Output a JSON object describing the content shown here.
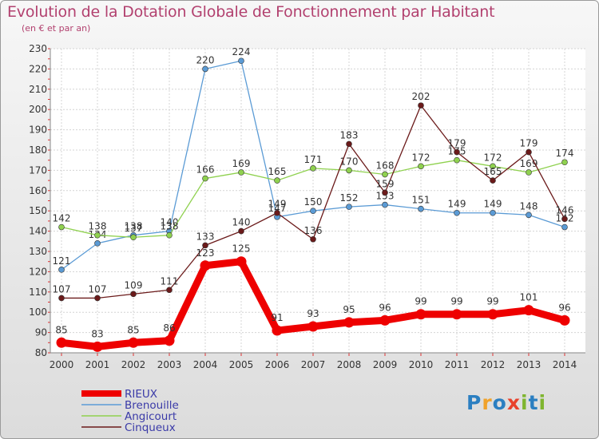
{
  "title": "Evolution de la Dotation Globale de Fonctionnement par Habitant",
  "subtitle": "(en € et par an)",
  "logo": "Proxiti",
  "chart_data": {
    "type": "line",
    "x": [
      "2000",
      "2001",
      "2002",
      "2003",
      "2004",
      "2005",
      "2006",
      "2007",
      "2008",
      "2009",
      "2010",
      "2011",
      "2012",
      "2013",
      "2014"
    ],
    "ylim": [
      80,
      230
    ],
    "yticks": [
      80,
      90,
      100,
      110,
      120,
      130,
      140,
      150,
      160,
      170,
      180,
      190,
      200,
      210,
      220,
      230
    ],
    "grid": true,
    "legend_position": "bottom-left",
    "series": [
      {
        "name": "Brenouille",
        "color": "#5b9bd5",
        "values": [
          121,
          134,
          138,
          140,
          220,
          224,
          147,
          150,
          152,
          153,
          151,
          149,
          149,
          148,
          142
        ]
      },
      {
        "name": "Angicourt",
        "color": "#8fd14f",
        "values": [
          142,
          138,
          137,
          138,
          166,
          169,
          165,
          171,
          170,
          168,
          172,
          175,
          172,
          169,
          174
        ]
      },
      {
        "name": "Cinqueux",
        "color": "#6b1a1a",
        "values": [
          107,
          107,
          109,
          111,
          133,
          140,
          149,
          136,
          183,
          159,
          202,
          179,
          165,
          179,
          146
        ]
      },
      {
        "name": "RIEUX",
        "color": "#ee0000",
        "values": [
          85,
          83,
          85,
          86,
          123,
          125,
          91,
          93,
          95,
          96,
          99,
          99,
          99,
          101,
          96
        ]
      }
    ],
    "legend": [
      "RIEUX",
      "Brenouille",
      "Angicourt",
      "Cinqueux"
    ]
  }
}
